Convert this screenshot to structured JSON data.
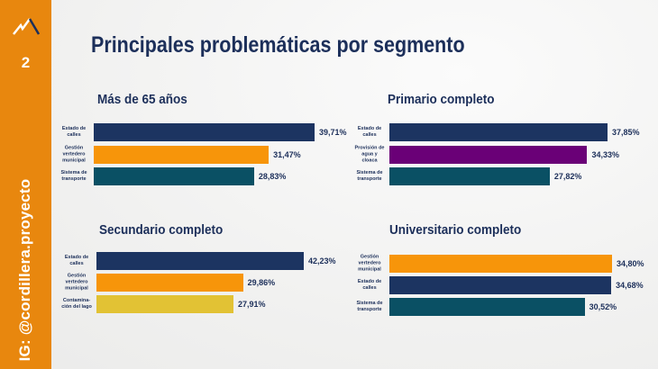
{
  "sidebar": {
    "page_number": "2",
    "handle": "IG: @cordillera.proyecto",
    "icon": "mountain-logo-icon",
    "color": "#e8870e"
  },
  "header": {
    "title": "Principales problemáticas por segmento"
  },
  "colors": {
    "navy": "#1c3461",
    "orange": "#f7950a",
    "teal": "#0a5064",
    "purple": "#6a0077",
    "yellow": "#e2c234"
  },
  "chart_data": [
    {
      "type": "bar",
      "orientation": "horizontal",
      "title": "Más de 65 años",
      "categories": [
        "Estado de calles",
        "Gestión vertedero municipal",
        "Sistema de transporte"
      ],
      "values": [
        39.71,
        31.47,
        28.83
      ],
      "labels": [
        "39,71%",
        "31,47%",
        "28,83%"
      ],
      "colors": [
        "#1c3461",
        "#f7950a",
        "#0a5064"
      ]
    },
    {
      "type": "bar",
      "orientation": "horizontal",
      "title": "Primario completo",
      "categories": [
        "Estado de calles",
        "Provisión de agua y cloaca",
        "Sistema de transporte"
      ],
      "values": [
        37.85,
        34.33,
        27.82
      ],
      "labels": [
        "37,85%",
        "34,33%",
        "27,82%"
      ],
      "colors": [
        "#1c3461",
        "#6a0077",
        "#0a5064"
      ]
    },
    {
      "type": "bar",
      "orientation": "horizontal",
      "title": "Secundario completo",
      "categories": [
        "Estado de calles",
        "Gestión vertedero municipal",
        "Contamina-ción del lago"
      ],
      "values": [
        42.23,
        29.86,
        27.91
      ],
      "labels": [
        "42,23%",
        "29,86%",
        "27,91%"
      ],
      "colors": [
        "#1c3461",
        "#f7950a",
        "#e2c234"
      ]
    },
    {
      "type": "bar",
      "orientation": "horizontal",
      "title": "Universitario completo",
      "categories": [
        "Gestión vertedero municipal",
        "Estado de calles",
        "Sistema de transporte"
      ],
      "values": [
        34.8,
        34.68,
        30.52
      ],
      "labels": [
        "34,80%",
        "34,68%",
        "30,52%"
      ],
      "colors": [
        "#f7950a",
        "#1c3461",
        "#0a5064"
      ]
    }
  ]
}
